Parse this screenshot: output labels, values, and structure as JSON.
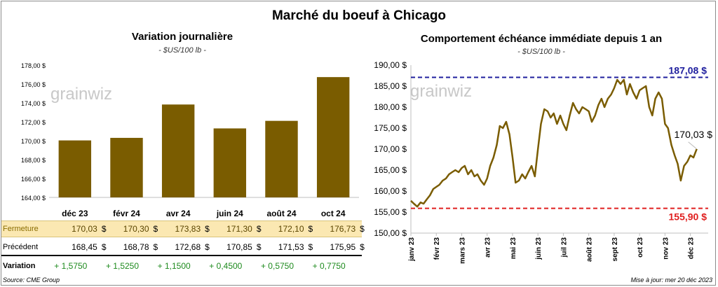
{
  "title": "Marché du boeuf à Chicago",
  "left_panel": {
    "title": "Variation  journalière",
    "subtitle": "- $US/100 lb -",
    "watermark": "grainwiz"
  },
  "right_panel": {
    "title": "Comportement  échéance immédiate depuis 1 an",
    "subtitle": "- $US/100 lb -",
    "watermark": "grainwiz"
  },
  "table": {
    "rows": [
      {
        "label": "Fermeture",
        "values": [
          "170,03",
          "170,30",
          "173,83",
          "171,30",
          "172,10",
          "176,73"
        ],
        "dollar": "$"
      },
      {
        "label": "Précédent",
        "values": [
          "168,45",
          "168,78",
          "172,68",
          "170,85",
          "171,53",
          "175,95"
        ],
        "dollar": "$"
      },
      {
        "label": "Variation",
        "values": [
          "+ 1,5750",
          "+ 1,5250",
          "+ 1,1500",
          "+ 0,4500",
          "+ 0,5750",
          "+ 0,7750"
        ]
      }
    ]
  },
  "footer": {
    "source": "Source: CME Group",
    "updated": "Mise à jour: mer 20 déc 2023"
  },
  "chart_data": [
    {
      "type": "bar",
      "title": "Variation  journalière",
      "subtitle": "- $US/100 lb -",
      "categories": [
        "déc 23",
        "févr 24",
        "avr 24",
        "juin 24",
        "août 24",
        "oct 24"
      ],
      "values": [
        170.03,
        170.3,
        173.83,
        171.3,
        172.1,
        176.73
      ],
      "ylim": [
        164,
        178
      ],
      "yticks": [
        164,
        166,
        168,
        170,
        172,
        174,
        176,
        178
      ],
      "ytick_labels": [
        "164,00 $",
        "166,00 $",
        "168,00 $",
        "170,00 $",
        "172,00 $",
        "174,00 $",
        "176,00 $",
        "178,00 $"
      ],
      "color": "#7a5c00",
      "grid": false
    },
    {
      "type": "line",
      "title": "Comportement  échéance immédiate depuis 1 an",
      "subtitle": "- $US/100 lb -",
      "x_labels": [
        "janv 23",
        "févr 23",
        "mars 23",
        "avr 23",
        "mai 23",
        "juin 23",
        "juil 23",
        "août 23",
        "sept 23",
        "oct 23",
        "nov 23",
        "déc 23"
      ],
      "x_domain": [
        0,
        11.7
      ],
      "ylim": [
        150,
        190
      ],
      "yticks": [
        150,
        155,
        160,
        165,
        170,
        175,
        180,
        185,
        190
      ],
      "ytick_labels": [
        "150,00 $",
        "155,00 $",
        "160,00 $",
        "165,00 $",
        "170,00 $",
        "175,00 $",
        "180,00 $",
        "185,00 $",
        "190,00 $"
      ],
      "line_color": "#7a5c00",
      "grid": false,
      "points": [
        [
          0.0,
          157.7
        ],
        [
          0.12,
          157.0
        ],
        [
          0.25,
          156.3
        ],
        [
          0.38,
          157.3
        ],
        [
          0.5,
          157.0
        ],
        [
          0.62,
          158.0
        ],
        [
          0.75,
          159.0
        ],
        [
          0.88,
          160.5
        ],
        [
          1.0,
          161.0
        ],
        [
          1.12,
          161.5
        ],
        [
          1.25,
          162.5
        ],
        [
          1.38,
          163.0
        ],
        [
          1.5,
          164.0
        ],
        [
          1.62,
          164.5
        ],
        [
          1.75,
          165.0
        ],
        [
          1.88,
          164.5
        ],
        [
          2.0,
          165.5
        ],
        [
          2.12,
          166.0
        ],
        [
          2.25,
          164.0
        ],
        [
          2.38,
          165.0
        ],
        [
          2.5,
          163.5
        ],
        [
          2.62,
          164.0
        ],
        [
          2.75,
          162.5
        ],
        [
          2.88,
          161.5
        ],
        [
          3.0,
          163.0
        ],
        [
          3.12,
          166.0
        ],
        [
          3.25,
          168.0
        ],
        [
          3.38,
          171.0
        ],
        [
          3.5,
          175.5
        ],
        [
          3.62,
          175.0
        ],
        [
          3.75,
          176.5
        ],
        [
          3.88,
          173.5
        ],
        [
          4.0,
          168.0
        ],
        [
          4.12,
          162.0
        ],
        [
          4.25,
          162.5
        ],
        [
          4.38,
          164.0
        ],
        [
          4.5,
          163.0
        ],
        [
          4.62,
          164.5
        ],
        [
          4.75,
          166.0
        ],
        [
          4.88,
          163.5
        ],
        [
          5.0,
          170.0
        ],
        [
          5.12,
          176.0
        ],
        [
          5.25,
          179.5
        ],
        [
          5.38,
          179.0
        ],
        [
          5.5,
          177.5
        ],
        [
          5.62,
          178.5
        ],
        [
          5.75,
          176.0
        ],
        [
          5.88,
          178.0
        ],
        [
          6.0,
          176.0
        ],
        [
          6.12,
          174.5
        ],
        [
          6.25,
          178.0
        ],
        [
          6.38,
          181.0
        ],
        [
          6.5,
          179.5
        ],
        [
          6.62,
          178.5
        ],
        [
          6.75,
          180.0
        ],
        [
          6.88,
          179.5
        ],
        [
          7.0,
          179.0
        ],
        [
          7.12,
          176.5
        ],
        [
          7.25,
          178.0
        ],
        [
          7.38,
          180.5
        ],
        [
          7.5,
          182.0
        ],
        [
          7.62,
          180.0
        ],
        [
          7.75,
          182.0
        ],
        [
          7.88,
          183.0
        ],
        [
          8.0,
          184.5
        ],
        [
          8.12,
          186.5
        ],
        [
          8.25,
          185.5
        ],
        [
          8.38,
          186.5
        ],
        [
          8.5,
          183.0
        ],
        [
          8.62,
          185.5
        ],
        [
          8.75,
          183.5
        ],
        [
          8.88,
          182.0
        ],
        [
          9.0,
          184.0
        ],
        [
          9.12,
          184.5
        ],
        [
          9.25,
          185.0
        ],
        [
          9.38,
          180.0
        ],
        [
          9.5,
          178.0
        ],
        [
          9.62,
          182.0
        ],
        [
          9.75,
          183.5
        ],
        [
          9.88,
          182.0
        ],
        [
          10.0,
          176.0
        ],
        [
          10.12,
          175.0
        ],
        [
          10.25,
          171.0
        ],
        [
          10.38,
          168.5
        ],
        [
          10.5,
          166.5
        ],
        [
          10.62,
          162.5
        ],
        [
          10.75,
          166.0
        ],
        [
          10.88,
          167.0
        ],
        [
          11.0,
          168.5
        ],
        [
          11.12,
          168.0
        ],
        [
          11.25,
          170.03
        ]
      ],
      "reference_lines": [
        {
          "value": 187.08,
          "label": "187,08 $",
          "color": "#1f1f9e",
          "style": "dashed"
        },
        {
          "value": 155.9,
          "label": "155,90 $",
          "color": "#e02020",
          "style": "dashed"
        }
      ],
      "last_value_label": "170,03 $"
    }
  ]
}
